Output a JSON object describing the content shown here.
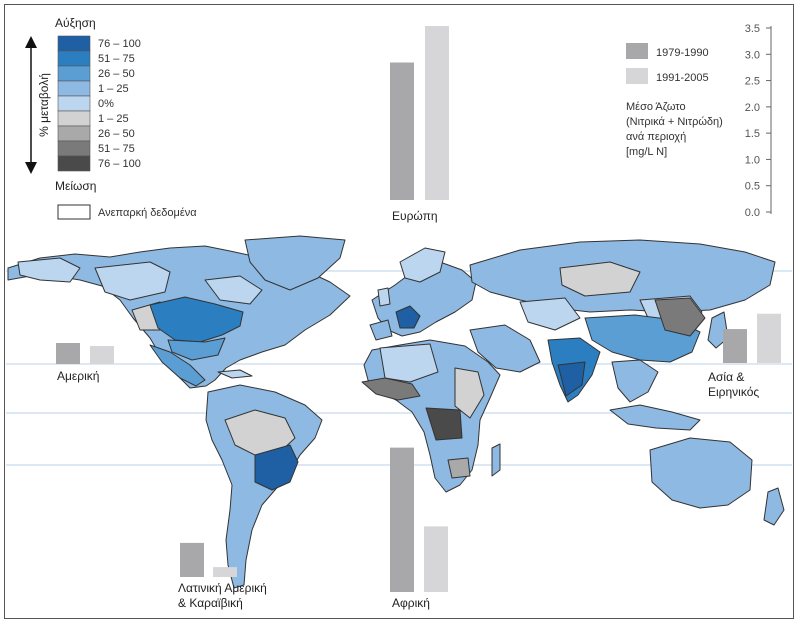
{
  "legend": {
    "top_label": "Αύξηση",
    "bottom_label": "Μείωση",
    "axis_label": "% μεταβολή",
    "classes": [
      {
        "label": "76 – 100",
        "color": "#1f5fa3"
      },
      {
        "label": "51 – 75",
        "color": "#2b7fc1"
      },
      {
        "label": "26 – 50",
        "color": "#5a9ed4"
      },
      {
        "label": "1 – 25",
        "color": "#8db9e2"
      },
      {
        "label": "0%",
        "color": "#bcd6ef"
      },
      {
        "label": "1 – 25",
        "color": "#d2d2d2"
      },
      {
        "label": "26 – 50",
        "color": "#a9a9a9"
      },
      {
        "label": "51 – 75",
        "color": "#7a7a7a"
      },
      {
        "label": "76 – 100",
        "color": "#4a4a4a"
      }
    ],
    "insufficient": {
      "label": "Ανεπαρκή δεδομένα",
      "color": "#ffffff"
    }
  },
  "series_legend": [
    {
      "label": "1979-1990",
      "color": "#a8a8ab"
    },
    {
      "label": "1991-2005",
      "color": "#d6d6d8"
    }
  ],
  "scale": {
    "title_lines": [
      "Μέσο Άζωτο",
      "(Νιτρικά + Νιτρώδη)",
      "ανά περιοχή",
      "[mg/L N]"
    ],
    "ticks": [
      "3.5",
      "3.0",
      "2.5",
      "2.0",
      "1.5",
      "1.0",
      "0.5",
      "0.0"
    ]
  },
  "chart_data": {
    "type": "bar",
    "ylabel": "Μέσο Άζωτο (Νιτρικά + Νιτρώδη) ανά περιοχή [mg/L N]",
    "ylim": [
      0,
      3.5
    ],
    "series_names": [
      "1979-1990",
      "1991-2005"
    ],
    "regions": [
      {
        "name": "Ευρώπη",
        "values": [
          2.75,
          3.48
        ]
      },
      {
        "name": "Αμερική",
        "values": [
          0.42,
          0.36
        ]
      },
      {
        "name": "Ασία & Ειρηνικός",
        "values": [
          0.64,
          0.93
        ]
      },
      {
        "name": "Λατινική Αμερική & Καραϊβική",
        "values": [
          0.62,
          0.18
        ]
      },
      {
        "name": "Αφρική",
        "values": [
          2.75,
          1.25
        ]
      }
    ]
  },
  "regions": {
    "europe": "Ευρώπη",
    "america": "Αμερική",
    "asia_lines": [
      "Ασία &",
      "Ειρηνικός"
    ],
    "latam_lines": [
      "Λατινική Αμερική",
      "& Καραϊβική"
    ],
    "africa": "Αφρική"
  },
  "map_colors": {
    "ocean": "#ffffff",
    "latitude_line": "#b9d2e8",
    "land_default": "#bcd6ef"
  }
}
